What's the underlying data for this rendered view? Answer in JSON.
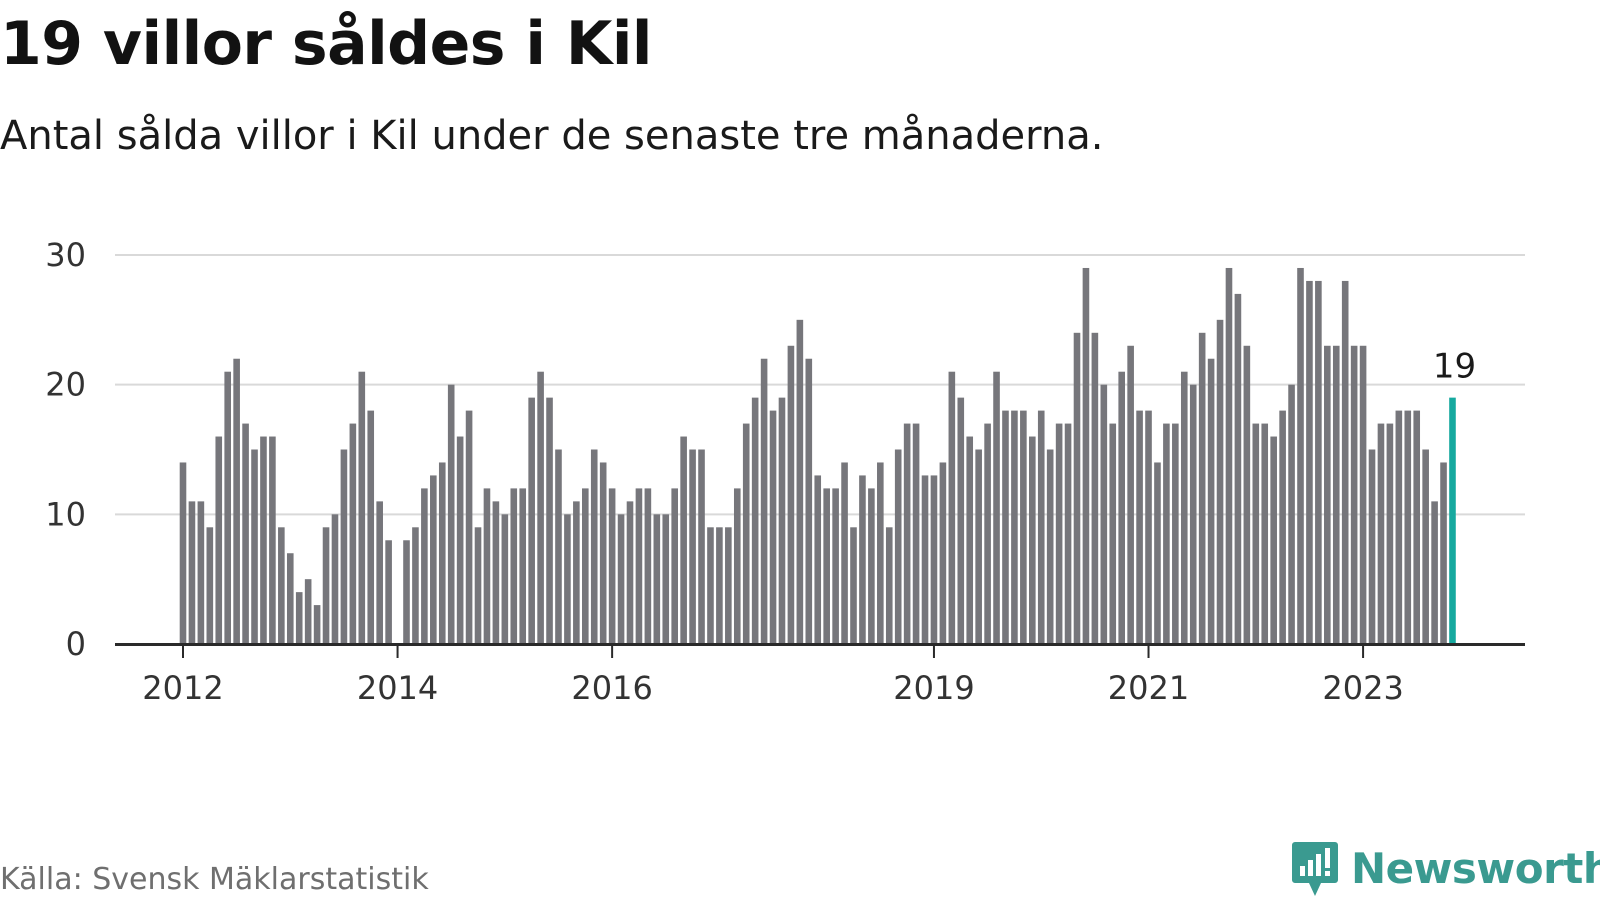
{
  "header": {
    "title": "19 villor såldes i Kil",
    "subtitle": "Antal sålda villor i Kil under de senaste tre månaderna."
  },
  "footer": {
    "source": "Källa: Svensk Mäklarstatistik",
    "brand": "Newsworthy"
  },
  "colors": {
    "bar": "#76767b",
    "highlight": "#16a99f",
    "grid": "#d9d9d9",
    "axis": "#2a2a2a",
    "brand": "#3a9a90"
  },
  "chart_data": {
    "type": "bar",
    "start": "2012-01",
    "values": [
      14,
      11,
      11,
      9,
      16,
      21,
      22,
      17,
      15,
      16,
      16,
      9,
      7,
      4,
      5,
      3,
      9,
      10,
      15,
      17,
      21,
      18,
      11,
      8,
      0,
      8,
      9,
      12,
      13,
      14,
      20,
      16,
      18,
      9,
      12,
      11,
      10,
      12,
      12,
      19,
      21,
      19,
      15,
      10,
      11,
      12,
      15,
      14,
      12,
      10,
      11,
      12,
      12,
      10,
      10,
      12,
      16,
      15,
      15,
      9,
      9,
      9,
      12,
      17,
      19,
      22,
      18,
      19,
      23,
      25,
      22,
      13,
      12,
      12,
      14,
      9,
      13,
      12,
      14,
      9,
      15,
      17,
      17,
      13,
      13,
      14,
      21,
      19,
      16,
      15,
      17,
      21,
      18,
      18,
      18,
      16,
      18,
      15,
      17,
      17,
      24,
      29,
      24,
      20,
      17,
      21,
      23,
      18,
      18,
      14,
      17,
      17,
      21,
      20,
      24,
      22,
      25,
      29,
      27,
      23,
      17,
      17,
      16,
      18,
      20,
      29,
      28,
      28,
      23,
      23,
      28,
      23,
      23,
      15,
      17,
      17,
      18,
      18,
      18,
      15,
      11,
      14,
      19
    ],
    "highlight_index": 142,
    "highlight_label": "19",
    "ylim": [
      0,
      30
    ],
    "yticks": [
      0,
      10,
      20,
      30
    ],
    "xticks": [
      {
        "label": "2012",
        "index": 0
      },
      {
        "label": "2014",
        "index": 24
      },
      {
        "label": "2016",
        "index": 48
      },
      {
        "label": "2019",
        "index": 84
      },
      {
        "label": "2021",
        "index": 108
      },
      {
        "label": "2023",
        "index": 132
      }
    ],
    "grid": true,
    "legend": "none"
  }
}
